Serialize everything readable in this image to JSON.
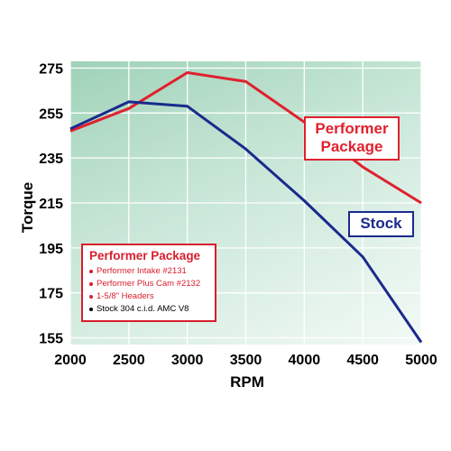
{
  "chart_data": {
    "type": "line",
    "xlabel": "RPM",
    "ylabel": "Torque",
    "x": [
      2000,
      2500,
      3000,
      3500,
      4000,
      4500,
      5000
    ],
    "xlim": [
      2000,
      5000
    ],
    "ylim": [
      152,
      278
    ],
    "x_ticks": [
      "2000",
      "2500",
      "3000",
      "3500",
      "4000",
      "4500",
      "5000"
    ],
    "y_ticks": [
      "275",
      "255",
      "235",
      "215",
      "195",
      "175",
      "155"
    ],
    "grid": true,
    "series": [
      {
        "name": "Performer Package",
        "color": "#e0212e",
        "values": [
          247,
          257,
          273,
          269,
          251,
          231,
          215
        ]
      },
      {
        "name": "Stock",
        "color": "#1a2a8c",
        "values": [
          248,
          260,
          258,
          239,
          216,
          191,
          153
        ]
      }
    ],
    "legend": {
      "title": "Performer Package",
      "items": [
        {
          "text": "Performer Intake #2131",
          "color": "#d81e2c"
        },
        {
          "text": "Performer Plus Cam #2132",
          "color": "#d81e2c"
        },
        {
          "text": "1-5/8\" Headers",
          "color": "#d81e2c"
        },
        {
          "text": "Stock 304 c.i.d. AMC V8",
          "color": "#000000"
        }
      ]
    },
    "series_labels": {
      "performer": "Performer\nPackage",
      "stock": "Stock"
    }
  }
}
